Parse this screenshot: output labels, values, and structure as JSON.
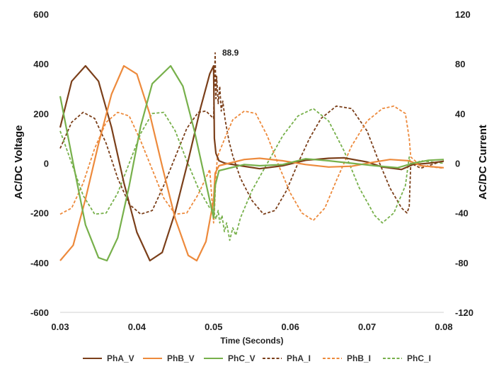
{
  "chart_data": {
    "type": "line",
    "xlabel": "Time (Seconds)",
    "ylabel_left": "AC/DC Voltage",
    "ylabel_right": "AC/DC Current",
    "xlim": [
      0.03,
      0.08
    ],
    "ylim_left": [
      -600,
      600
    ],
    "ylim_right": [
      -120,
      120
    ],
    "x_ticks": [
      "0.03",
      "0.04",
      "0.05",
      "0.06",
      "0.07",
      "0.08"
    ],
    "y_left_ticks": [
      "600",
      "400",
      "200",
      "0",
      "-200",
      "-400",
      "-600"
    ],
    "y_right_ticks": [
      "120",
      "80",
      "40",
      "0",
      "-40",
      "-80",
      "-120"
    ],
    "grid": false,
    "legend_position": "bottom",
    "annotation": {
      "text": "88.9",
      "x": 0.0502,
      "y": 88.9,
      "axis": "right"
    },
    "series": [
      {
        "name": "PhA_V",
        "axis": "left",
        "style": "solid",
        "color": "#7b3f1a",
        "points": [
          [
            0.03,
            144
          ],
          [
            0.0315,
            330
          ],
          [
            0.0333,
            392
          ],
          [
            0.035,
            330
          ],
          [
            0.0367,
            144
          ],
          [
            0.0383,
            -78
          ],
          [
            0.04,
            -278
          ],
          [
            0.0417,
            -392
          ],
          [
            0.0433,
            -359
          ],
          [
            0.045,
            -196
          ],
          [
            0.0467,
            12
          ],
          [
            0.0483,
            223
          ],
          [
            0.0495,
            360
          ],
          [
            0.05,
            392
          ],
          [
            0.0501,
            100
          ],
          [
            0.0503,
            40
          ],
          [
            0.0507,
            10
          ],
          [
            0.0515,
            0
          ],
          [
            0.0535,
            -10
          ],
          [
            0.056,
            -22
          ],
          [
            0.059,
            -10
          ],
          [
            0.062,
            12
          ],
          [
            0.065,
            20
          ],
          [
            0.067,
            22
          ],
          [
            0.07,
            5
          ],
          [
            0.072,
            -15
          ],
          [
            0.0745,
            -25
          ],
          [
            0.076,
            -5
          ],
          [
            0.078,
            0
          ],
          [
            0.08,
            8
          ]
        ]
      },
      {
        "name": "PhB_V",
        "axis": "left",
        "style": "solid",
        "color": "#ed8a3c",
        "points": [
          [
            0.03,
            -392
          ],
          [
            0.0317,
            -330
          ],
          [
            0.0333,
            -144
          ],
          [
            0.035,
            78
          ],
          [
            0.0367,
            278
          ],
          [
            0.0383,
            392
          ],
          [
            0.04,
            359
          ],
          [
            0.0417,
            196
          ],
          [
            0.0433,
            -12
          ],
          [
            0.045,
            -223
          ],
          [
            0.0467,
            -371
          ],
          [
            0.0478,
            -392
          ],
          [
            0.049,
            -315
          ],
          [
            0.05,
            -148
          ],
          [
            0.0502,
            -40
          ],
          [
            0.0507,
            -10
          ],
          [
            0.052,
            0
          ],
          [
            0.054,
            15
          ],
          [
            0.056,
            20
          ],
          [
            0.059,
            10
          ],
          [
            0.062,
            -5
          ],
          [
            0.065,
            -15
          ],
          [
            0.068,
            -12
          ],
          [
            0.071,
            5
          ],
          [
            0.073,
            15
          ],
          [
            0.0755,
            10
          ],
          [
            0.077,
            -10
          ],
          [
            0.08,
            -18
          ]
        ]
      },
      {
        "name": "PhC_V",
        "axis": "left",
        "style": "solid",
        "color": "#77b04b",
        "points": [
          [
            0.03,
            270
          ],
          [
            0.0317,
            0
          ],
          [
            0.0333,
            -248
          ],
          [
            0.035,
            -380
          ],
          [
            0.0361,
            -392
          ],
          [
            0.0375,
            -300
          ],
          [
            0.039,
            -90
          ],
          [
            0.0405,
            150
          ],
          [
            0.042,
            320
          ],
          [
            0.0444,
            392
          ],
          [
            0.046,
            310
          ],
          [
            0.0475,
            130
          ],
          [
            0.049,
            -80
          ],
          [
            0.05,
            -220
          ],
          [
            0.0502,
            -90
          ],
          [
            0.0507,
            -30
          ],
          [
            0.052,
            -20
          ],
          [
            0.054,
            -5
          ],
          [
            0.056,
            -10
          ],
          [
            0.059,
            -5
          ],
          [
            0.062,
            18
          ],
          [
            0.065,
            10
          ],
          [
            0.068,
            0
          ],
          [
            0.071,
            -10
          ],
          [
            0.074,
            -18
          ],
          [
            0.076,
            0
          ],
          [
            0.078,
            12
          ],
          [
            0.08,
            15
          ]
        ]
      },
      {
        "name": "PhA_I",
        "axis": "right",
        "style": "dashed",
        "color": "#7b3f1a",
        "points": [
          [
            0.03,
            12
          ],
          [
            0.0315,
            33
          ],
          [
            0.033,
            41
          ],
          [
            0.0345,
            36
          ],
          [
            0.036,
            16
          ],
          [
            0.0375,
            -12
          ],
          [
            0.039,
            -33
          ],
          [
            0.0405,
            -41
          ],
          [
            0.042,
            -38
          ],
          [
            0.0435,
            -18
          ],
          [
            0.045,
            5
          ],
          [
            0.0465,
            28
          ],
          [
            0.048,
            41
          ],
          [
            0.049,
            42
          ],
          [
            0.05,
            36
          ],
          [
            0.0502,
            88.9
          ],
          [
            0.0503,
            52
          ],
          [
            0.0504,
            70
          ],
          [
            0.0506,
            48
          ],
          [
            0.0508,
            62
          ],
          [
            0.051,
            42
          ],
          [
            0.0512,
            50
          ],
          [
            0.0515,
            35
          ],
          [
            0.052,
            18
          ],
          [
            0.0525,
            6
          ],
          [
            0.0535,
            -12
          ],
          [
            0.055,
            -30
          ],
          [
            0.0565,
            -41
          ],
          [
            0.058,
            -38
          ],
          [
            0.0595,
            -22
          ],
          [
            0.061,
            0
          ],
          [
            0.0625,
            20
          ],
          [
            0.064,
            36
          ],
          [
            0.066,
            46
          ],
          [
            0.068,
            44
          ],
          [
            0.07,
            26
          ],
          [
            0.0715,
            2
          ],
          [
            0.073,
            -20
          ],
          [
            0.0745,
            -36
          ],
          [
            0.0752,
            -40
          ],
          [
            0.0755,
            -35
          ],
          [
            0.0757,
            0
          ],
          [
            0.077,
            -4
          ],
          [
            0.08,
            2
          ]
        ]
      },
      {
        "name": "PhB_I",
        "axis": "right",
        "style": "dashed",
        "color": "#ed8a3c",
        "points": [
          [
            0.03,
            -41
          ],
          [
            0.0315,
            -36
          ],
          [
            0.033,
            -16
          ],
          [
            0.0345,
            12
          ],
          [
            0.036,
            33
          ],
          [
            0.0375,
            41
          ],
          [
            0.039,
            38
          ],
          [
            0.0405,
            18
          ],
          [
            0.042,
            -5
          ],
          [
            0.0435,
            -28
          ],
          [
            0.045,
            -41
          ],
          [
            0.0465,
            -40
          ],
          [
            0.048,
            -25
          ],
          [
            0.0495,
            -5
          ],
          [
            0.05,
            -48
          ],
          [
            0.0501,
            -40
          ],
          [
            0.0503,
            -10
          ],
          [
            0.0505,
            5
          ],
          [
            0.0508,
            10
          ],
          [
            0.0512,
            16
          ],
          [
            0.0516,
            22
          ],
          [
            0.0525,
            35
          ],
          [
            0.054,
            42
          ],
          [
            0.0555,
            40
          ],
          [
            0.057,
            22
          ],
          [
            0.0585,
            -2
          ],
          [
            0.06,
            -24
          ],
          [
            0.0615,
            -40
          ],
          [
            0.063,
            -46
          ],
          [
            0.0645,
            -36
          ],
          [
            0.066,
            -14
          ],
          [
            0.068,
            14
          ],
          [
            0.07,
            34
          ],
          [
            0.072,
            44
          ],
          [
            0.0735,
            46
          ],
          [
            0.075,
            40
          ],
          [
            0.0755,
            20
          ],
          [
            0.0757,
            5
          ],
          [
            0.077,
            -2
          ],
          [
            0.08,
            -4
          ]
        ]
      },
      {
        "name": "PhC_I",
        "axis": "right",
        "style": "dashed",
        "color": "#77b04b",
        "points": [
          [
            0.03,
            26
          ],
          [
            0.0315,
            0
          ],
          [
            0.033,
            -26
          ],
          [
            0.0345,
            -41
          ],
          [
            0.036,
            -40
          ],
          [
            0.0375,
            -24
          ],
          [
            0.039,
            0
          ],
          [
            0.0405,
            24
          ],
          [
            0.042,
            40
          ],
          [
            0.0435,
            41
          ],
          [
            0.045,
            26
          ],
          [
            0.0465,
            2
          ],
          [
            0.048,
            -20
          ],
          [
            0.0495,
            -36
          ],
          [
            0.05,
            -38
          ],
          [
            0.0503,
            -45
          ],
          [
            0.0506,
            -38
          ],
          [
            0.0508,
            -48
          ],
          [
            0.0511,
            -42
          ],
          [
            0.0514,
            -55
          ],
          [
            0.0517,
            -48
          ],
          [
            0.0521,
            -62
          ],
          [
            0.0525,
            -52
          ],
          [
            0.0529,
            -58
          ],
          [
            0.0535,
            -44
          ],
          [
            0.055,
            -22
          ],
          [
            0.057,
            0
          ],
          [
            0.059,
            22
          ],
          [
            0.061,
            38
          ],
          [
            0.063,
            44
          ],
          [
            0.065,
            34
          ],
          [
            0.067,
            10
          ],
          [
            0.069,
            -20
          ],
          [
            0.071,
            -42
          ],
          [
            0.072,
            -48
          ],
          [
            0.0735,
            -40
          ],
          [
            0.075,
            -18
          ],
          [
            0.0755,
            5
          ],
          [
            0.0757,
            -2
          ],
          [
            0.077,
            2
          ],
          [
            0.08,
            0
          ]
        ]
      }
    ]
  }
}
